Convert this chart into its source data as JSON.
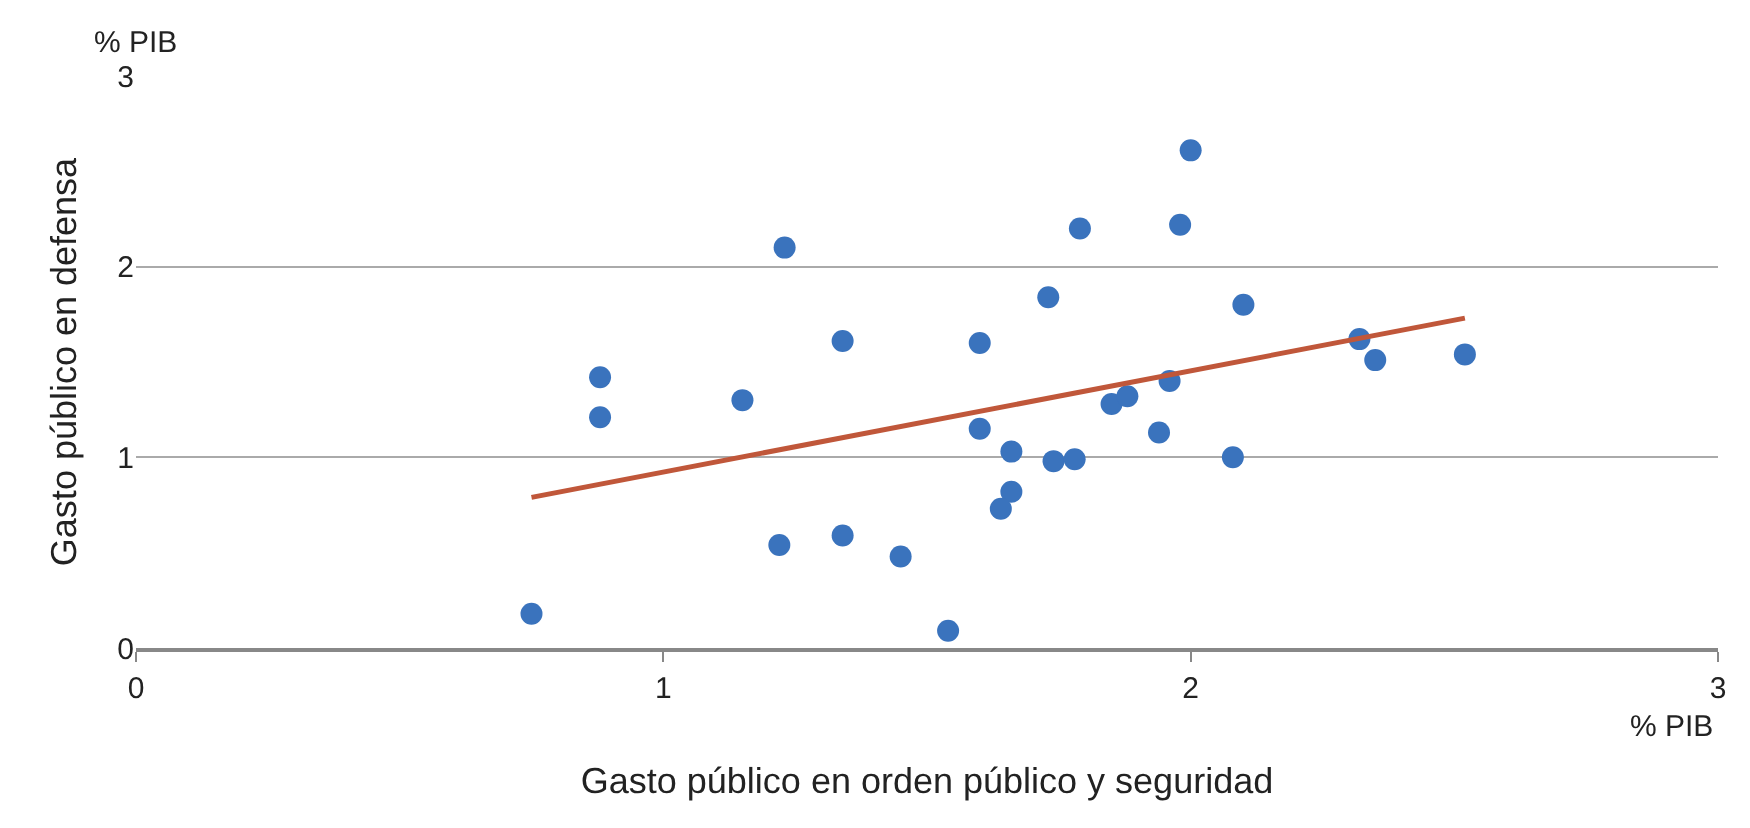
{
  "chart_data": {
    "type": "scatter",
    "xlabel": "Gasto público en orden público y seguridad",
    "ylabel": "Gasto público en defensa",
    "annotations": [
      "% PIB",
      "% PIB"
    ],
    "xlim": [
      0,
      3
    ],
    "xticks": [
      0,
      1,
      2,
      3
    ],
    "ylim": [
      0,
      3
    ],
    "yticks": [
      0,
      1,
      2,
      3
    ],
    "grid": "y",
    "marker": "circle",
    "series": [
      {
        "color": "#3a73bd",
        "x": [
          0.75,
          0.88,
          0.88,
          1.15,
          1.23,
          1.22,
          1.34,
          1.34,
          1.45,
          1.54,
          1.6,
          1.6,
          1.66,
          1.66,
          1.64,
          1.73,
          1.79,
          1.74,
          1.78,
          1.85,
          1.88,
          1.94,
          1.96,
          1.98,
          2.0,
          2.08,
          2.1,
          2.32,
          2.35,
          2.52
        ],
        "values": [
          0.18,
          1.42,
          1.21,
          1.3,
          2.1,
          0.54,
          1.61,
          0.59,
          0.48,
          0.09,
          1.6,
          1.15,
          1.03,
          0.82,
          0.73,
          1.84,
          2.2,
          0.98,
          0.99,
          1.28,
          1.32,
          1.13,
          1.4,
          2.22,
          2.61,
          1.0,
          1.8,
          1.62,
          1.51,
          1.54
        ]
      },
      {
        "type": "line",
        "color": "#c0573a",
        "marker": "none",
        "x": [
          0.75,
          2.52
        ],
        "values": [
          0.79,
          1.73
        ]
      }
    ]
  }
}
